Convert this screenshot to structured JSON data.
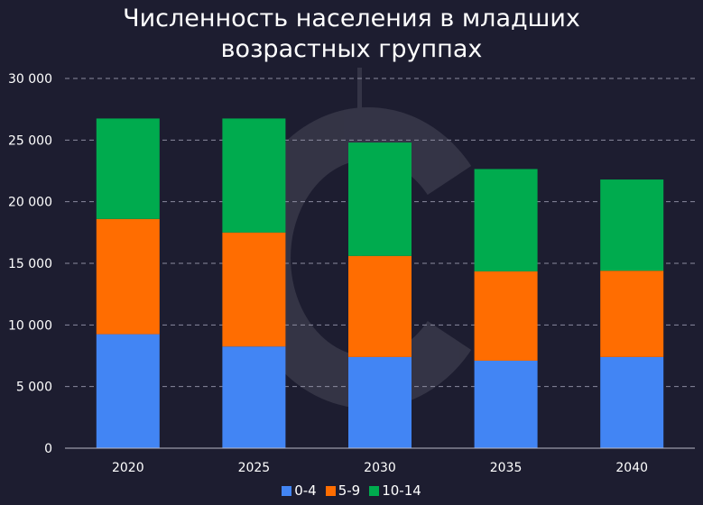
{
  "chart_data": {
    "type": "bar",
    "stacked": true,
    "title": [
      "Численность населения в младших",
      "возрастных группах"
    ],
    "categories": [
      "2020",
      "2025",
      "2030",
      "2035",
      "2040"
    ],
    "series": [
      {
        "name": "0-4",
        "color": "#4285f4",
        "values": [
          9250,
          8250,
          7400,
          7100,
          7400
        ]
      },
      {
        "name": "5-9",
        "color": "#ff6d01",
        "values": [
          9350,
          9250,
          8200,
          7250,
          7000
        ]
      },
      {
        "name": "10-14",
        "color": "#00ab4e",
        "values": [
          8150,
          9250,
          9200,
          8300,
          7400
        ]
      }
    ],
    "ylim": [
      0,
      30000
    ],
    "yticks": [
      "0",
      "5 000",
      "10 000",
      "15 000",
      "20 000",
      "25 000",
      "30 000"
    ],
    "ytick_values": [
      0,
      5000,
      10000,
      15000,
      20000,
      25000,
      30000
    ],
    "grid": true,
    "legend_position": "bottom-center",
    "xlabel": "",
    "ylabel": ""
  }
}
